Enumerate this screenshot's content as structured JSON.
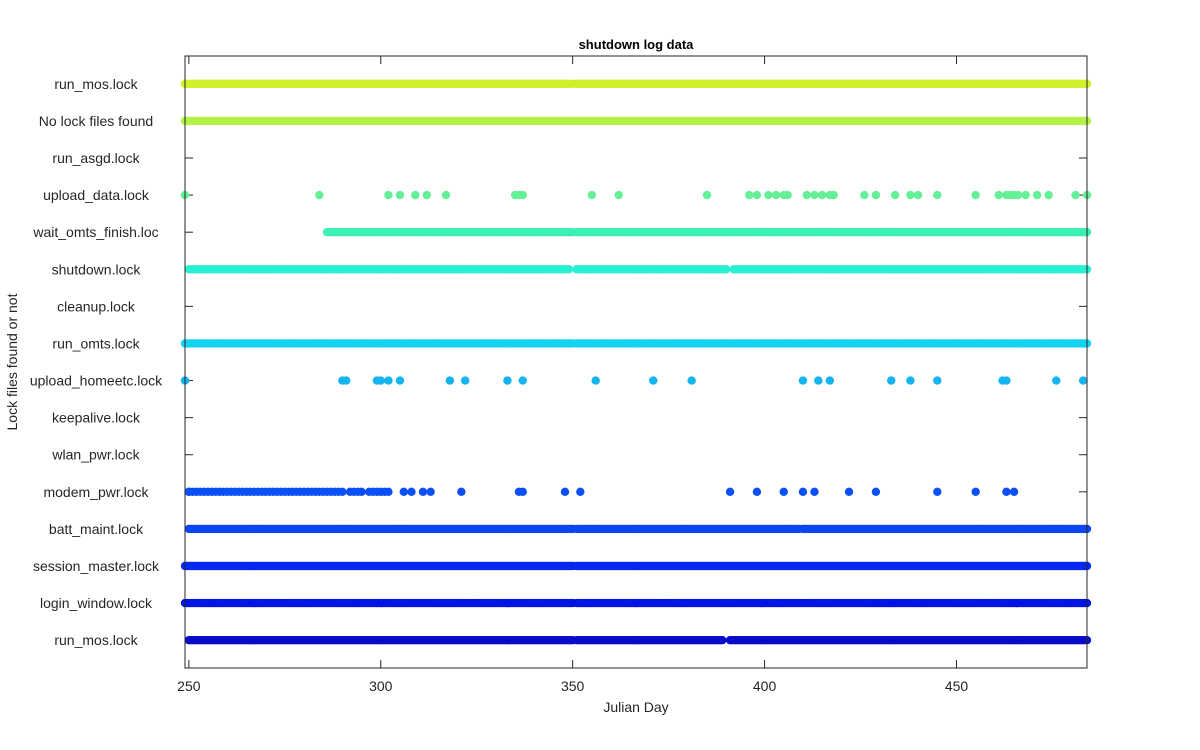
{
  "chart_data": {
    "type": "scatter",
    "title": "shutdown log data",
    "xlabel": "Julian Day",
    "ylabel": "Lock files found or not",
    "xlim": [
      249,
      484
    ],
    "ylim": [
      0.25,
      16.75
    ],
    "xticks": [
      250,
      300,
      350,
      400,
      450
    ],
    "grid": false,
    "legend": "none",
    "categories": [
      "run_mos.lock",
      "login_window.lock",
      "session_master.lock",
      "batt_maint.lock",
      "modem_pwr.lock",
      "wlan_pwr.lock",
      "keepalive.lock",
      "upload_homeetc.lock",
      "run_omts.lock",
      "cleanup.lock",
      "shutdown.lock",
      "wait_omts_finish.loc",
      "upload_data.lock",
      "run_asgd.lock",
      "No lock files found",
      "run_mos.lock"
    ],
    "series": [
      {
        "level": 1,
        "color": "#0a0ac8",
        "ranges": [
          [
            250,
            350,
            0.5
          ],
          [
            351,
            389,
            0.5
          ],
          [
            391,
            484,
            0.5
          ]
        ],
        "points": []
      },
      {
        "level": 2,
        "color": "#0014e6",
        "ranges": [
          [
            249,
            350,
            0.5
          ],
          [
            351,
            484,
            0.5
          ]
        ],
        "points": []
      },
      {
        "level": 3,
        "color": "#0528f0",
        "ranges": [
          [
            249,
            350,
            0.5
          ],
          [
            351,
            484,
            0.5
          ]
        ],
        "points": []
      },
      {
        "level": 4,
        "color": "#0a46f5",
        "ranges": [
          [
            250,
            350,
            0.5
          ],
          [
            351,
            409,
            0.5
          ],
          [
            410,
            484,
            0.5
          ]
        ],
        "points": []
      },
      {
        "level": 5,
        "color": "#0a50f5",
        "ranges": [
          [
            250,
            290,
            1
          ],
          [
            292,
            295,
            1
          ],
          [
            297,
            302,
            1
          ]
        ],
        "points": [
          250,
          306,
          308,
          311,
          313,
          321,
          336,
          337,
          348,
          352,
          391,
          398,
          405,
          410,
          413,
          422,
          429,
          445,
          455,
          463,
          465
        ]
      },
      {
        "level": 6,
        "color": "#1e78f0",
        "ranges": [],
        "points": []
      },
      {
        "level": 7,
        "color": "#1e8cf0",
        "ranges": [],
        "points": []
      },
      {
        "level": 8,
        "color": "#14b4f0",
        "ranges": [],
        "points": [
          249,
          290,
          291,
          299,
          300,
          302,
          305,
          318,
          322,
          333,
          337,
          356,
          371,
          381,
          410,
          414,
          417,
          433,
          438,
          445,
          462,
          463,
          476,
          483
        ]
      },
      {
        "level": 9,
        "color": "#14d2f0",
        "ranges": [
          [
            249,
            350,
            0.5
          ],
          [
            351,
            484,
            0.5
          ]
        ],
        "points": []
      },
      {
        "level": 10,
        "color": "#1ee6e6",
        "ranges": [],
        "points": []
      },
      {
        "level": 11,
        "color": "#28f0d2",
        "ranges": [
          [
            250,
            349,
            0.5
          ],
          [
            351,
            390,
            0.5
          ],
          [
            392,
            484,
            0.5
          ]
        ],
        "points": []
      },
      {
        "level": 12,
        "color": "#3cf0b4",
        "ranges": [
          [
            286,
            350,
            0.5
          ],
          [
            351,
            484,
            0.5
          ]
        ],
        "points": []
      },
      {
        "level": 13,
        "color": "#64f096",
        "ranges": [],
        "points": [
          249,
          284,
          302,
          305,
          309,
          312,
          317,
          335,
          336,
          337,
          355,
          362,
          385,
          396,
          398,
          401,
          403,
          405,
          406,
          411,
          413,
          415,
          417,
          418,
          426,
          429,
          434,
          438,
          440,
          445,
          455,
          461,
          463,
          464,
          465,
          466,
          468,
          471,
          474,
          481,
          484
        ]
      },
      {
        "level": 14,
        "color": "#96f064",
        "ranges": [],
        "points": []
      },
      {
        "level": 15,
        "color": "#b4f046",
        "ranges": [
          [
            249,
            350,
            0.5
          ],
          [
            351,
            484,
            0.5
          ]
        ],
        "points": []
      },
      {
        "level": 16,
        "color": "#d2f028",
        "ranges": [
          [
            249,
            350,
            0.5
          ],
          [
            351,
            484,
            0.5
          ]
        ],
        "points": []
      }
    ]
  }
}
